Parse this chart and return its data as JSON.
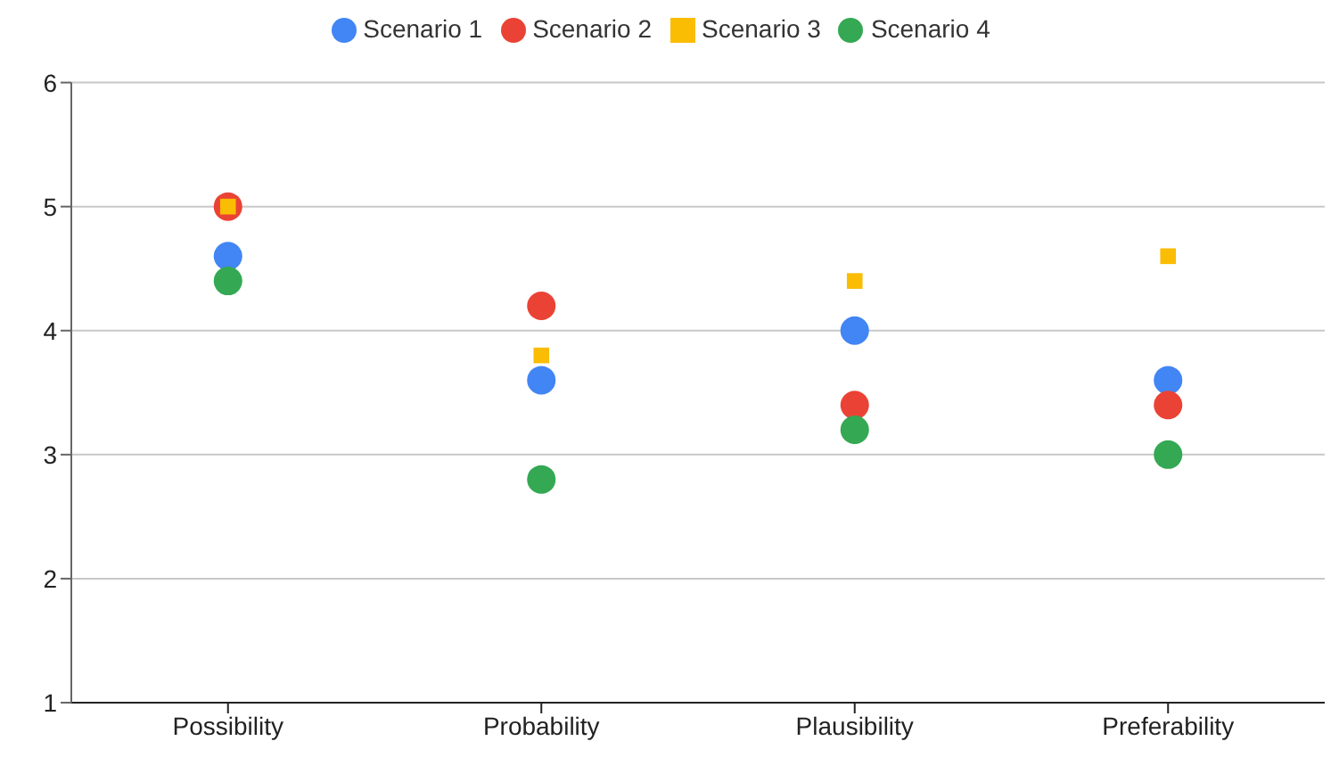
{
  "chart_data": {
    "type": "scatter",
    "categories": [
      "Possibility",
      "Probability",
      "Plausibility",
      "Preferability"
    ],
    "series": [
      {
        "name": "Scenario 1",
        "color": "#4285f4",
        "marker": "circle",
        "values": [
          4.6,
          3.6,
          4.0,
          3.6
        ]
      },
      {
        "name": "Scenario 2",
        "color": "#ea4335",
        "marker": "circle",
        "values": [
          5.0,
          4.2,
          3.4,
          3.4
        ]
      },
      {
        "name": "Scenario 3",
        "color": "#fbbc04",
        "marker": "square",
        "values": [
          5.0,
          3.8,
          4.4,
          4.6
        ]
      },
      {
        "name": "Scenario 4",
        "color": "#34a853",
        "marker": "circle",
        "values": [
          4.4,
          2.8,
          3.2,
          3.0
        ]
      }
    ],
    "ylim": [
      1,
      6
    ],
    "yticks": [
      1,
      2,
      3,
      4,
      5,
      6
    ],
    "grid": "y",
    "legend": "top"
  }
}
